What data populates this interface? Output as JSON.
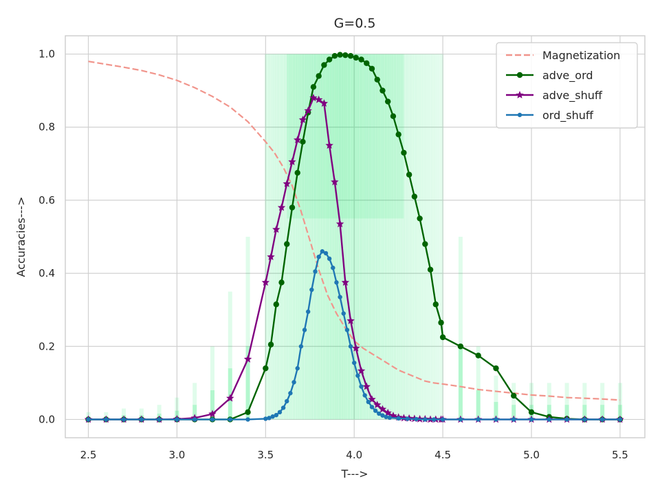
{
  "chart_data": {
    "type": "line",
    "title": "G=0.5",
    "xlabel": "T--->",
    "ylabel": "Accuracies--->",
    "xlim": [
      2.37,
      5.64
    ],
    "ylim": [
      -0.05,
      1.05
    ],
    "xticks": [
      "2.5",
      "3.0",
      "3.5",
      "4.0",
      "4.5",
      "5.0",
      "5.5"
    ],
    "yticks": [
      "0.0",
      "0.2",
      "0.4",
      "0.6",
      "0.8",
      "1.0"
    ],
    "grid": true,
    "legend_position": "top-right",
    "series": [
      {
        "name": "Magnetization",
        "style": "dashed",
        "marker": "none",
        "color": "#f1958c",
        "x": [
          2.5,
          2.6,
          2.7,
          2.8,
          2.9,
          3.0,
          3.1,
          3.2,
          3.3,
          3.4,
          3.5,
          3.55,
          3.6,
          3.65,
          3.7,
          3.75,
          3.8,
          3.85,
          3.9,
          3.95,
          4.0,
          4.05,
          4.1,
          4.15,
          4.2,
          4.25,
          4.3,
          4.35,
          4.4,
          4.45,
          4.5,
          4.6,
          4.7,
          4.8,
          4.9,
          5.0,
          5.1,
          5.2,
          5.3,
          5.4,
          5.5
        ],
        "y": [
          0.98,
          0.972,
          0.964,
          0.955,
          0.943,
          0.928,
          0.908,
          0.884,
          0.855,
          0.815,
          0.76,
          0.73,
          0.69,
          0.64,
          0.57,
          0.49,
          0.41,
          0.34,
          0.29,
          0.25,
          0.215,
          0.195,
          0.18,
          0.165,
          0.15,
          0.135,
          0.125,
          0.115,
          0.105,
          0.1,
          0.097,
          0.09,
          0.082,
          0.077,
          0.072,
          0.067,
          0.064,
          0.06,
          0.058,
          0.056,
          0.053
        ]
      },
      {
        "name": "adve_ord",
        "style": "solid",
        "marker": "circle",
        "color": "#006400",
        "x": [
          2.5,
          2.6,
          2.7,
          2.8,
          2.9,
          3.0,
          3.1,
          3.2,
          3.3,
          3.4,
          3.5,
          3.53,
          3.56,
          3.59,
          3.62,
          3.65,
          3.68,
          3.71,
          3.74,
          3.77,
          3.8,
          3.83,
          3.86,
          3.89,
          3.92,
          3.95,
          3.98,
          4.01,
          4.04,
          4.07,
          4.1,
          4.13,
          4.16,
          4.19,
          4.22,
          4.25,
          4.28,
          4.31,
          4.34,
          4.37,
          4.4,
          4.43,
          4.46,
          4.49,
          4.5,
          4.6,
          4.7,
          4.8,
          4.9,
          5.0,
          5.1,
          5.2,
          5.3,
          5.4,
          5.5
        ],
        "y": [
          0.0,
          0.0,
          0.0,
          0.0,
          0.0,
          0.0,
          0.0,
          0.0,
          0.0,
          0.02,
          0.14,
          0.205,
          0.315,
          0.375,
          0.48,
          0.58,
          0.675,
          0.76,
          0.84,
          0.91,
          0.94,
          0.97,
          0.985,
          0.995,
          0.998,
          0.997,
          0.995,
          0.99,
          0.985,
          0.975,
          0.96,
          0.93,
          0.9,
          0.87,
          0.83,
          0.78,
          0.73,
          0.67,
          0.61,
          0.55,
          0.48,
          0.41,
          0.315,
          0.265,
          0.225,
          0.2,
          0.175,
          0.14,
          0.065,
          0.02,
          0.007,
          0.002,
          0.0,
          0.0,
          0.0
        ]
      },
      {
        "name": "adve_shuff",
        "style": "solid",
        "marker": "star",
        "color": "#800080",
        "x": [
          2.5,
          2.6,
          2.7,
          2.8,
          2.9,
          3.0,
          3.1,
          3.2,
          3.3,
          3.4,
          3.5,
          3.53,
          3.56,
          3.59,
          3.62,
          3.65,
          3.68,
          3.71,
          3.74,
          3.77,
          3.8,
          3.83,
          3.86,
          3.89,
          3.92,
          3.95,
          3.98,
          4.01,
          4.04,
          4.07,
          4.1,
          4.13,
          4.16,
          4.19,
          4.22,
          4.25,
          4.28,
          4.31,
          4.34,
          4.37,
          4.4,
          4.43,
          4.46,
          4.49,
          4.5,
          4.6,
          4.7,
          4.8,
          4.9,
          5.0,
          5.1,
          5.2,
          5.3,
          5.4,
          5.5
        ],
        "y": [
          0.0,
          0.0,
          0.0,
          0.0,
          0.0,
          0.001,
          0.004,
          0.015,
          0.058,
          0.165,
          0.375,
          0.445,
          0.52,
          0.58,
          0.645,
          0.705,
          0.765,
          0.82,
          0.845,
          0.88,
          0.875,
          0.865,
          0.75,
          0.65,
          0.535,
          0.375,
          0.27,
          0.195,
          0.133,
          0.09,
          0.055,
          0.04,
          0.028,
          0.018,
          0.01,
          0.006,
          0.004,
          0.003,
          0.002,
          0.001,
          0.001,
          0.0,
          0.0,
          0.0,
          0.0,
          0.0,
          0.0,
          0.0,
          0.0,
          0.0,
          0.0,
          0.0,
          0.0,
          0.0,
          0.0
        ]
      },
      {
        "name": "ord_shuff",
        "style": "solid",
        "marker": "small-circle",
        "color": "#1f77b4",
        "x": [
          2.5,
          2.6,
          2.7,
          2.8,
          2.9,
          3.0,
          3.1,
          3.2,
          3.3,
          3.4,
          3.5,
          3.52,
          3.54,
          3.56,
          3.58,
          3.6,
          3.62,
          3.64,
          3.66,
          3.68,
          3.7,
          3.72,
          3.74,
          3.76,
          3.78,
          3.8,
          3.82,
          3.84,
          3.86,
          3.88,
          3.9,
          3.92,
          3.94,
          3.96,
          3.98,
          4.0,
          4.02,
          4.04,
          4.06,
          4.08,
          4.1,
          4.12,
          4.14,
          4.16,
          4.18,
          4.2,
          4.25,
          4.3,
          4.35,
          4.4,
          4.45,
          4.5,
          4.6,
          4.7,
          4.8,
          4.9,
          5.0,
          5.1,
          5.2,
          5.3,
          5.4,
          5.5
        ],
        "y": [
          0.0,
          0.0,
          0.0,
          0.0,
          0.0,
          0.0,
          0.0,
          0.0,
          0.0,
          0.0,
          0.002,
          0.004,
          0.008,
          0.012,
          0.02,
          0.032,
          0.05,
          0.072,
          0.102,
          0.14,
          0.2,
          0.245,
          0.295,
          0.355,
          0.405,
          0.445,
          0.46,
          0.455,
          0.44,
          0.415,
          0.375,
          0.335,
          0.29,
          0.245,
          0.2,
          0.155,
          0.12,
          0.09,
          0.066,
          0.048,
          0.034,
          0.024,
          0.016,
          0.011,
          0.007,
          0.005,
          0.003,
          0.002,
          0.001,
          0.0,
          0.0,
          0.0,
          0.0,
          0.0,
          0.0,
          0.0,
          0.0,
          0.0,
          0.0,
          0.0,
          0.0,
          0.0
        ]
      }
    ],
    "background_cloud": {
      "color": "#00e65c",
      "description": "translucent individual-run accuracy traces",
      "dense_x_range": [
        3.5,
        4.5
      ],
      "dense_y_range": [
        0.0,
        1.0
      ],
      "sparse_x": [
        2.5,
        2.6,
        2.7,
        2.8,
        2.9,
        3.0,
        3.1,
        3.2,
        3.3,
        3.4,
        4.6,
        4.7,
        4.8,
        4.9,
        5.0,
        5.1,
        5.2,
        5.3,
        5.4,
        5.5
      ],
      "sparse_y_max": [
        0.02,
        0.02,
        0.03,
        0.03,
        0.04,
        0.06,
        0.1,
        0.2,
        0.35,
        0.5,
        0.5,
        0.2,
        0.12,
        0.1,
        0.1,
        0.1,
        0.1,
        0.1,
        0.1,
        0.1
      ]
    }
  }
}
